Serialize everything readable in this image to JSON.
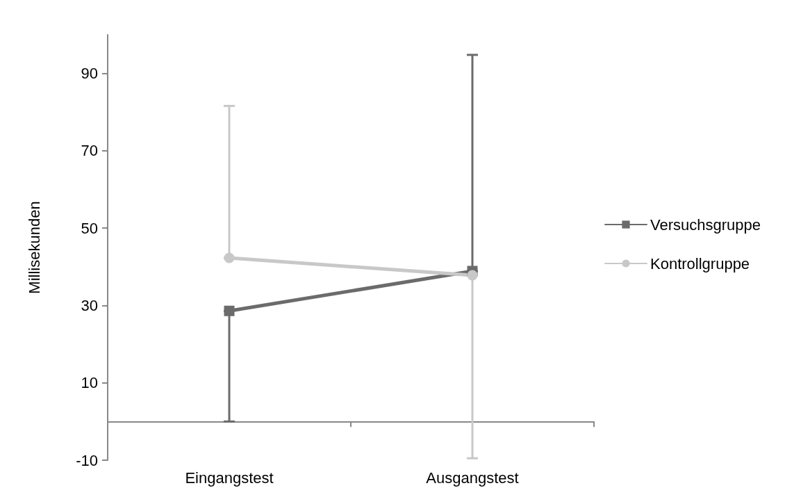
{
  "chart_data": {
    "type": "line",
    "ylabel": "Millisekunden",
    "categories": [
      "Eingangstest",
      "Ausgangstest"
    ],
    "series": [
      {
        "name": "Versuchsgruppe",
        "color": "#6b6b6b",
        "marker": "square",
        "values": [
          28.6,
          38.9
        ],
        "errors": [
          [
            0,
            28.6
          ],
          [
            38.9,
            94.8
          ]
        ]
      },
      {
        "name": "Kontrollgruppe",
        "color": "#c8c8c8",
        "marker": "circle",
        "values": [
          42.3,
          37.8
        ],
        "errors": [
          [
            42.3,
            81.6
          ],
          [
            -9.5,
            37.8
          ]
        ]
      }
    ],
    "ylim": [
      -10,
      100
    ],
    "yticks": [
      -10,
      10,
      30,
      50,
      70,
      90
    ],
    "grid": false,
    "legend": "right",
    "line_style": "solid"
  }
}
